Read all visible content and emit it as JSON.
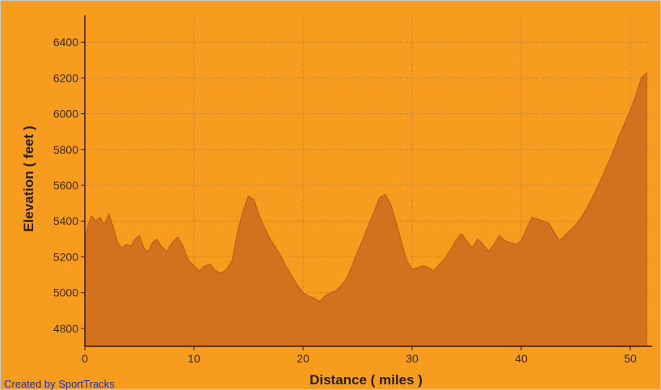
{
  "chart_data": {
    "type": "area",
    "xlabel": "Distance ( miles )",
    "ylabel": "Elevation ( feet )",
    "xlim": [
      0,
      52
    ],
    "ylim": [
      4700,
      6550
    ],
    "x_ticks": [
      0,
      10,
      20,
      30,
      40,
      50
    ],
    "y_ticks": [
      4800,
      5000,
      5200,
      5400,
      5600,
      5800,
      6000,
      6200,
      6400
    ],
    "grid": true,
    "colors": {
      "background": "#f89c1f",
      "area_fill": "#d2721f",
      "area_edge": "#b35c14",
      "grid": "#9a7a50",
      "axis": "#2a1e0c"
    },
    "series": [
      {
        "x": [
          0,
          0.3,
          0.6,
          1.0,
          1.4,
          1.8,
          2.2,
          2.6,
          3.0,
          3.4,
          3.8,
          4.2,
          4.6,
          5.0,
          5.4,
          5.8,
          6.2,
          6.6,
          7.0,
          7.5,
          8.0,
          8.5,
          9.0,
          9.5,
          10.0,
          10.5,
          11.0,
          11.5,
          12.0,
          12.5,
          13.0,
          13.5,
          14.0,
          14.5,
          15.0,
          15.5,
          16.0,
          16.5,
          17.0,
          17.5,
          18.0,
          18.5,
          19.0,
          19.5,
          20.0,
          20.5,
          21.0,
          21.5,
          22.0,
          22.5,
          23.0,
          23.5,
          24.0,
          24.5,
          25.0,
          25.5,
          26.0,
          26.5,
          27.0,
          27.5,
          28.0,
          28.5,
          29.0,
          29.5,
          30.0,
          30.5,
          31.0,
          31.5,
          32.0,
          32.5,
          33.0,
          33.5,
          34.0,
          34.5,
          35.0,
          35.5,
          36.0,
          36.5,
          37.0,
          37.5,
          38.0,
          38.5,
          39.0,
          39.5,
          40.0,
          40.5,
          41.0,
          41.5,
          42.0,
          42.5,
          43.0,
          43.5,
          44.0,
          44.5,
          45.0,
          45.5,
          46.0,
          46.5,
          47.0,
          47.5,
          48.0,
          48.5,
          49.0,
          49.5,
          50.0,
          50.5,
          51.0,
          51.5
        ],
        "y": [
          5300,
          5380,
          5430,
          5400,
          5420,
          5380,
          5440,
          5370,
          5280,
          5250,
          5270,
          5260,
          5300,
          5320,
          5250,
          5230,
          5280,
          5300,
          5260,
          5230,
          5280,
          5310,
          5260,
          5180,
          5150,
          5120,
          5150,
          5160,
          5120,
          5110,
          5130,
          5180,
          5340,
          5460,
          5540,
          5520,
          5430,
          5360,
          5300,
          5250,
          5200,
          5140,
          5090,
          5040,
          5000,
          4980,
          4970,
          4950,
          4980,
          5000,
          5010,
          5040,
          5080,
          5150,
          5230,
          5300,
          5380,
          5450,
          5530,
          5550,
          5500,
          5400,
          5290,
          5180,
          5130,
          5140,
          5150,
          5140,
          5120,
          5160,
          5190,
          5240,
          5290,
          5330,
          5290,
          5250,
          5300,
          5270,
          5230,
          5270,
          5320,
          5290,
          5280,
          5270,
          5290,
          5360,
          5420,
          5410,
          5400,
          5390,
          5340,
          5290,
          5320,
          5350,
          5380,
          5420,
          5470,
          5530,
          5590,
          5660,
          5730,
          5800,
          5880,
          5950,
          6020,
          6100,
          6200,
          6230
        ]
      }
    ]
  },
  "footer": {
    "credit": "Created by SportTracks"
  }
}
